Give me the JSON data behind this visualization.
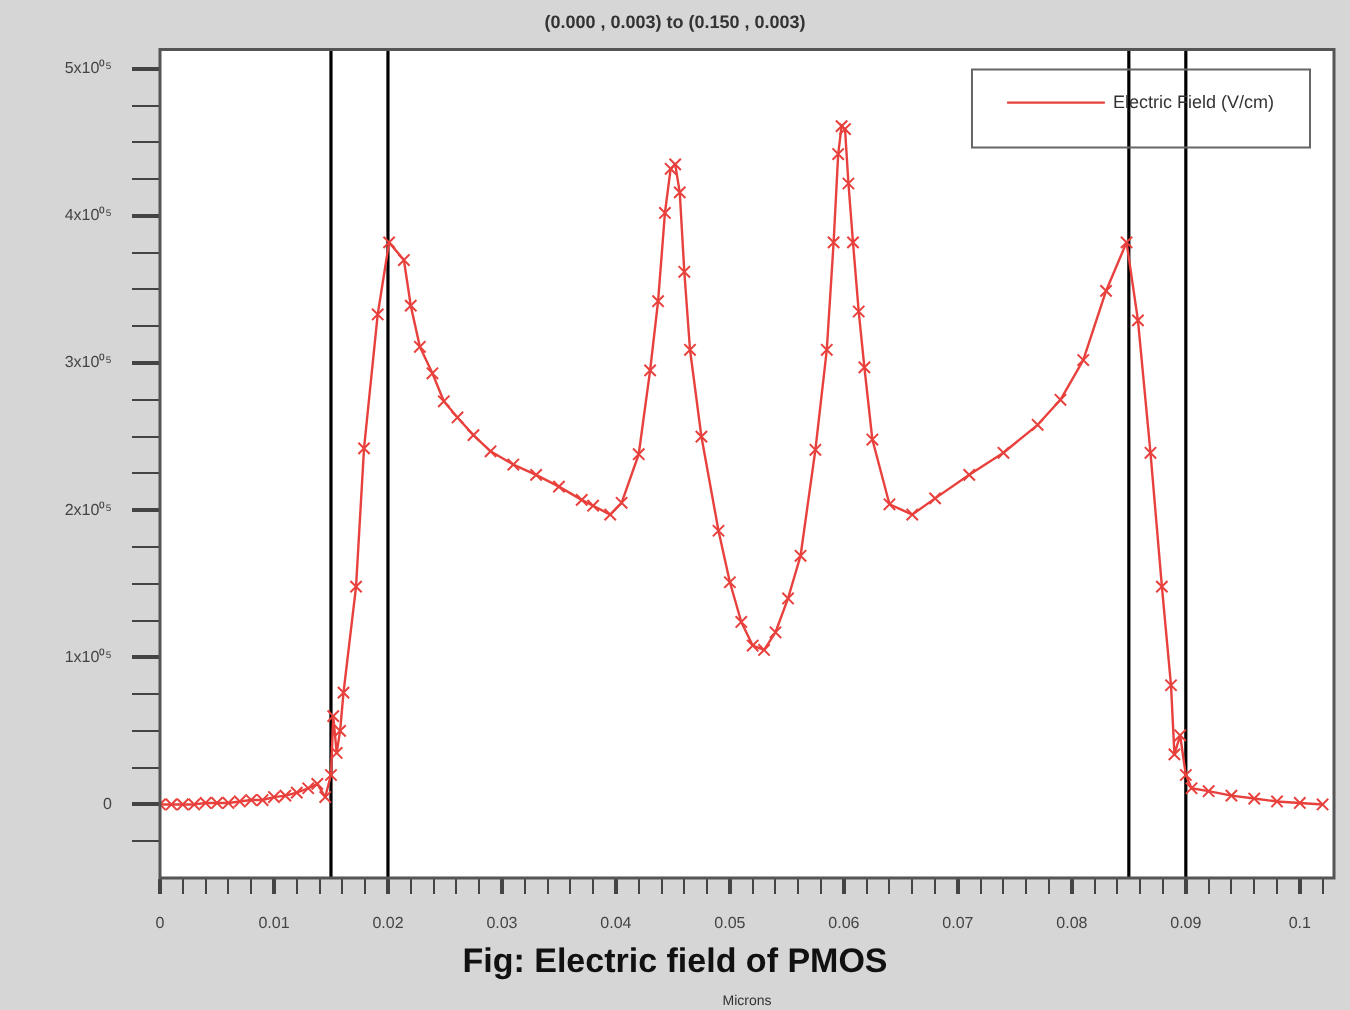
{
  "chart_data": {
    "type": "line",
    "title": "(0.000 , 0.003) to (0.150 , 0.003)",
    "xlabel": "Microns",
    "annotations": [
      "Fig: Electric field of PMOS"
    ],
    "xlim": [
      0,
      0.103
    ],
    "xticks": [
      0,
      {
        "value": 0.002,
        "label": null
      },
      {
        "value": 0.004,
        "label": null
      },
      {
        "value": 0.006,
        "label": null
      },
      {
        "value": 0.008,
        "label": null
      },
      0.01,
      {
        "value": 0.012,
        "label": null
      },
      {
        "value": 0.014,
        "label": null
      },
      {
        "value": 0.016,
        "label": null
      },
      {
        "value": 0.018,
        "label": null
      },
      0.02,
      {
        "value": 0.022,
        "label": null
      },
      {
        "value": 0.024,
        "label": null
      },
      {
        "value": 0.026,
        "label": null
      },
      {
        "value": 0.028,
        "label": null
      },
      0.03,
      {
        "value": 0.032,
        "label": null
      },
      {
        "value": 0.034,
        "label": null
      },
      {
        "value": 0.036,
        "label": null
      },
      {
        "value": 0.038,
        "label": null
      },
      0.04,
      {
        "value": 0.042,
        "label": null
      },
      {
        "value": 0.044,
        "label": null
      },
      {
        "value": 0.046,
        "label": null
      },
      {
        "value": 0.048,
        "label": null
      },
      0.05,
      {
        "value": 0.052,
        "label": null
      },
      {
        "value": 0.054,
        "label": null
      },
      {
        "value": 0.056,
        "label": null
      },
      {
        "value": 0.058,
        "label": null
      },
      0.06,
      {
        "value": 0.062,
        "label": null
      },
      {
        "value": 0.064,
        "label": null
      },
      {
        "value": 0.066,
        "label": null
      },
      {
        "value": 0.068,
        "label": null
      },
      0.07,
      {
        "value": 0.072,
        "label": null
      },
      {
        "value": 0.074,
        "label": null
      },
      {
        "value": 0.076,
        "label": null
      },
      {
        "value": 0.078,
        "label": null
      },
      0.08,
      {
        "value": 0.082,
        "label": null
      },
      {
        "value": 0.084,
        "label": null
      },
      {
        "value": 0.086,
        "label": null
      },
      {
        "value": 0.088,
        "label": null
      },
      0.09,
      {
        "value": 0.092,
        "label": null
      },
      {
        "value": 0.094,
        "label": null
      },
      {
        "value": 0.096,
        "label": null
      },
      {
        "value": 0.098,
        "label": null
      },
      0.1,
      {
        "value": 0.102,
        "label": null
      }
    ],
    "ylim": [
      -50000,
      513000
    ],
    "yticks": [
      {
        "value": -25000,
        "label": null
      },
      0,
      {
        "value": 25000,
        "label": null
      },
      {
        "value": 50000,
        "label": null
      },
      {
        "value": 75000,
        "label": null
      },
      {
        "value": 100000,
        "label": "1x10⁰⁵"
      },
      {
        "value": 125000,
        "label": null
      },
      {
        "value": 150000,
        "label": null
      },
      {
        "value": 175000,
        "label": null
      },
      {
        "value": 200000,
        "label": "2x10⁰⁵"
      },
      {
        "value": 225000,
        "label": null
      },
      {
        "value": 250000,
        "label": null
      },
      {
        "value": 275000,
        "label": null
      },
      {
        "value": 300000,
        "label": "3x10⁰⁵"
      },
      {
        "value": 325000,
        "label": null
      },
      {
        "value": 350000,
        "label": null
      },
      {
        "value": 375000,
        "label": null
      },
      {
        "value": 400000,
        "label": "4x10⁰⁵"
      },
      {
        "value": 425000,
        "label": null
      },
      {
        "value": 450000,
        "label": null
      },
      {
        "value": 475000,
        "label": null
      },
      {
        "value": 500000,
        "label": "5x10⁰⁵"
      }
    ],
    "grid": false,
    "legend": "top right",
    "marker": "cross",
    "line_style": "solid",
    "ref_lines": [
      {
        "axis": "x",
        "value": 0.015,
        "color": "#000000"
      },
      {
        "axis": "x",
        "value": 0.02,
        "color": "#000000"
      },
      {
        "axis": "x",
        "value": 0.085,
        "color": "#000000"
      },
      {
        "axis": "x",
        "value": 0.09,
        "color": "#000000"
      }
    ],
    "series": [
      {
        "name": "Electric Field (V/cm)",
        "color": "#e8403c",
        "x": [
          0,
          0.001,
          0.002,
          0.003,
          0.004,
          0.005,
          0.006,
          0.007,
          0.008,
          0.009,
          0.01,
          0.011,
          0.012,
          0.013,
          0.0138,
          0.0145,
          0.015,
          0.0152,
          0.0155,
          0.0158,
          0.0161,
          0.0172,
          0.0179,
          0.0191,
          0.0201,
          0.0214,
          0.022,
          0.0228,
          0.0239,
          0.0249,
          0.0261,
          0.0275,
          0.029,
          0.031,
          0.033,
          0.035,
          0.037,
          0.038,
          0.0395,
          0.0405,
          0.042,
          0.043,
          0.0437,
          0.0443,
          0.0448,
          0.0452,
          0.0456,
          0.046,
          0.0465,
          0.0475,
          0.049,
          0.05,
          0.051,
          0.052,
          0.053,
          0.054,
          0.0551,
          0.0562,
          0.0575,
          0.0585,
          0.0591,
          0.0595,
          0.0598,
          0.0601,
          0.0604,
          0.0608,
          0.0613,
          0.0618,
          0.0625,
          0.064,
          0.066,
          0.068,
          0.071,
          0.074,
          0.077,
          0.079,
          0.081,
          0.083,
          0.0848,
          0.0858,
          0.0869,
          0.0879,
          0.0887,
          0.089,
          0.0895,
          0.09,
          0.0905,
          0.092,
          0.094,
          0.096,
          0.098,
          0.1,
          0.102
        ],
        "values": [
          0,
          0,
          0,
          0,
          1000,
          1000,
          1000,
          2000,
          3000,
          3000,
          5000,
          6000,
          8000,
          11000,
          14000,
          5000,
          20000,
          60000,
          35000,
          50000,
          76000,
          148000,
          242000,
          333000,
          382000,
          370000,
          339000,
          311000,
          293000,
          274000,
          263000,
          251000,
          240000,
          231000,
          224000,
          216000,
          207000,
          203000,
          197000,
          205000,
          238000,
          295000,
          342000,
          402000,
          432000,
          435000,
          416000,
          362000,
          309000,
          250000,
          186000,
          151000,
          124000,
          108000,
          105000,
          117000,
          140000,
          169000,
          241000,
          309000,
          382000,
          442000,
          461000,
          459000,
          422000,
          382000,
          335000,
          297000,
          248000,
          204000,
          197000,
          208000,
          224000,
          239000,
          258000,
          275000,
          302000,
          349000,
          382000,
          329000,
          239000,
          148000,
          81000,
          34000,
          47000,
          20000,
          11000,
          9000,
          6000,
          4000,
          2000,
          1000,
          0
        ]
      }
    ]
  }
}
